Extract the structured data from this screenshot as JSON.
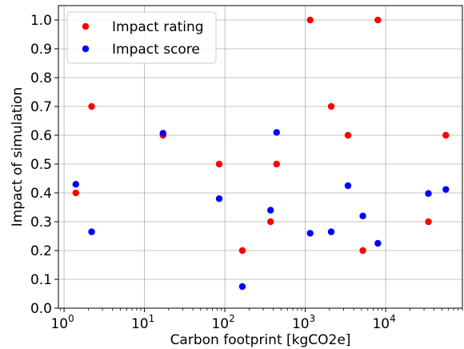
{
  "chart_data": {
    "type": "scatter",
    "title": "",
    "xlabel": "Carbon footprint [kgCO2e]",
    "ylabel": "Impact of simulation",
    "xscale": "log",
    "xlim": [
      0.85,
      90000
    ],
    "ylim": [
      0.0,
      1.05
    ],
    "grid": true,
    "legend_position": "top-left",
    "x_ticks": [
      {
        "base": "10",
        "exp": "0",
        "value": 1
      },
      {
        "base": "10",
        "exp": "1",
        "value": 10
      },
      {
        "base": "10",
        "exp": "2",
        "value": 100
      },
      {
        "base": "10",
        "exp": "3",
        "value": 1000
      },
      {
        "base": "10",
        "exp": "4",
        "value": 10000
      }
    ],
    "y_ticks": [
      "0.0",
      "0.1",
      "0.2",
      "0.3",
      "0.4",
      "0.5",
      "0.6",
      "0.7",
      "0.8",
      "0.9",
      "1.0"
    ],
    "series": [
      {
        "name": "Impact rating",
        "color": "#ff0000",
        "points": [
          {
            "x": 1.4,
            "y": 0.4
          },
          {
            "x": 2.2,
            "y": 0.7
          },
          {
            "x": 17,
            "y": 0.6
          },
          {
            "x": 85,
            "y": 0.5
          },
          {
            "x": 165,
            "y": 0.2
          },
          {
            "x": 370,
            "y": 0.3
          },
          {
            "x": 440,
            "y": 0.5
          },
          {
            "x": 1150,
            "y": 1.0
          },
          {
            "x": 2100,
            "y": 0.7
          },
          {
            "x": 3400,
            "y": 0.6
          },
          {
            "x": 5200,
            "y": 0.2
          },
          {
            "x": 8000,
            "y": 1.0
          },
          {
            "x": 34000,
            "y": 0.3
          },
          {
            "x": 56000,
            "y": 0.6
          }
        ]
      },
      {
        "name": "Impact score",
        "color": "#0000ff",
        "points": [
          {
            "x": 1.4,
            "y": 0.43
          },
          {
            "x": 2.2,
            "y": 0.265
          },
          {
            "x": 17,
            "y": 0.607
          },
          {
            "x": 85,
            "y": 0.38
          },
          {
            "x": 165,
            "y": 0.075
          },
          {
            "x": 370,
            "y": 0.34
          },
          {
            "x": 440,
            "y": 0.61
          },
          {
            "x": 1150,
            "y": 0.26
          },
          {
            "x": 2100,
            "y": 0.265
          },
          {
            "x": 3400,
            "y": 0.425
          },
          {
            "x": 5200,
            "y": 0.32
          },
          {
            "x": 8000,
            "y": 0.225
          },
          {
            "x": 34000,
            "y": 0.398
          },
          {
            "x": 56000,
            "y": 0.412
          }
        ]
      }
    ]
  }
}
